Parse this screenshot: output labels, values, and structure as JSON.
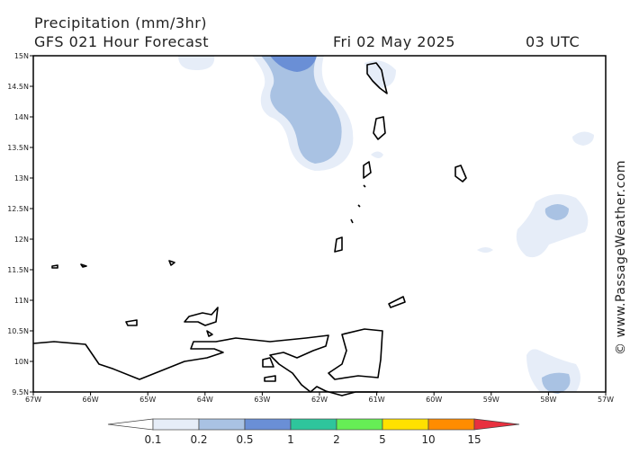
{
  "header": {
    "title": "Precipitation (mm/3hr)",
    "model": "GFS 021 Hour Forecast",
    "date": "Fri 02 May 2025",
    "time": "03 UTC"
  },
  "map": {
    "lat_labels": [
      "15N",
      "14.5N",
      "14N",
      "13.5N",
      "13N",
      "12.5N",
      "12N",
      "11.5N",
      "11N",
      "10.5N",
      "10N",
      "9.5N"
    ],
    "lon_labels": [
      "67W",
      "66W",
      "65W",
      "64W",
      "63W",
      "62W",
      "61W",
      "60W",
      "59W",
      "58W",
      "57W"
    ]
  },
  "colorbar": {
    "labels": [
      "0.1",
      "0.2",
      "0.5",
      "1",
      "2",
      "5",
      "10",
      "15"
    ],
    "colors": [
      "#ffffff",
      "#e6edf8",
      "#a9c2e3",
      "#6a8fd6",
      "#2ec59c",
      "#66ee55",
      "#ffe100",
      "#ff8c00",
      "#e8303f"
    ]
  },
  "watermark": "© www.PassageWeather.com"
}
